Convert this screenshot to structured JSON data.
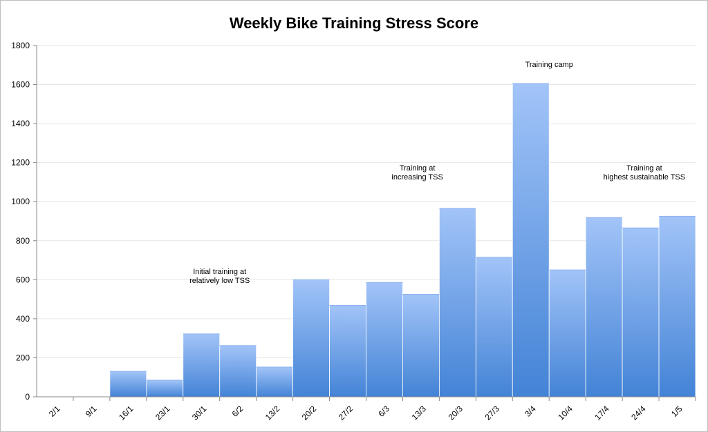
{
  "chart_data": {
    "type": "bar",
    "title": "Weekly Bike Training Stress Score",
    "xlabel": "",
    "ylabel": "",
    "ylim": [
      0,
      1800
    ],
    "yticks": [
      0,
      200,
      400,
      600,
      800,
      1000,
      1200,
      1400,
      1600,
      1800
    ],
    "grid": true,
    "categories": [
      "2/1",
      "9/1",
      "16/1",
      "23/1",
      "30/1",
      "6/2",
      "13/2",
      "20/2",
      "27/2",
      "6/3",
      "13/3",
      "20/3",
      "27/3",
      "3/4",
      "10/4",
      "17/4",
      "24/4",
      "1/5"
    ],
    "values": [
      0,
      0,
      130,
      85,
      322,
      262,
      152,
      600,
      468,
      585,
      525,
      965,
      715,
      1605,
      650,
      918,
      865,
      925
    ],
    "colors": {
      "bar_top": "#a2c4f8",
      "bar_bottom": "#4383d6",
      "grid": "#e6e6e6",
      "axis": "#888888"
    },
    "annotations": [
      {
        "lines": [
          "Initial training at",
          "relatively low TSS"
        ],
        "category_index": 4.5,
        "value": 630
      },
      {
        "lines": [
          "Training at",
          "increasing TSS"
        ],
        "category_index": 9.9,
        "value": 1160
      },
      {
        "lines": [
          "Training camp"
        ],
        "category_index": 13.5,
        "value": 1690
      },
      {
        "lines": [
          "Training at",
          "highest sustainable TSS"
        ],
        "category_index": 16.1,
        "value": 1160
      }
    ]
  }
}
